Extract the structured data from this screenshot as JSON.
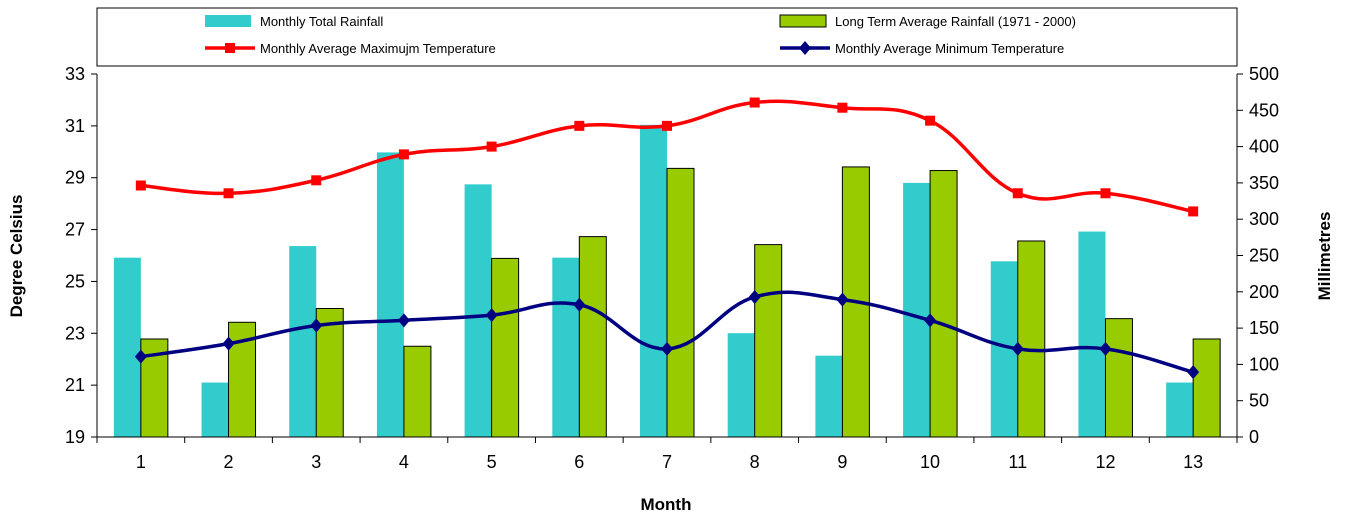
{
  "chart_data": {
    "type": "bar",
    "categories": [
      "1",
      "2",
      "3",
      "4",
      "5",
      "6",
      "7",
      "8",
      "9",
      "10",
      "11",
      "12",
      "13"
    ],
    "xlabel": "Month",
    "ylabel_left": "Degree Celsius",
    "ylabel_right": "Millimetres",
    "y_left_lim": [
      19,
      33
    ],
    "y_left_ticks": [
      "19",
      "21",
      "23",
      "25",
      "27",
      "29",
      "31",
      "33"
    ],
    "y_right_lim": [
      0,
      500
    ],
    "y_right_ticks": [
      "0",
      "50",
      "100",
      "150",
      "200",
      "250",
      "300",
      "350",
      "400",
      "450",
      "500"
    ],
    "grid": false,
    "legend_position": "top",
    "series": [
      {
        "name": "Monthly Total Rainfall",
        "kind": "bar",
        "axis": "right",
        "color": "#33CCCC",
        "values": [
          247,
          75,
          263,
          392,
          348,
          247,
          430,
          143,
          112,
          350,
          242,
          283,
          75
        ]
      },
      {
        "name": "Long Term Average Rainfall (1971 - 2000)",
        "kind": "bar",
        "axis": "right",
        "color": "#99CC00",
        "values": [
          135,
          158,
          177,
          125,
          246,
          276,
          370,
          265,
          372,
          367,
          270,
          163,
          135
        ]
      },
      {
        "name": "Monthly Average Maximujm Temperature",
        "kind": "line",
        "marker": "square",
        "axis": "left",
        "color": "#FF0000",
        "values": [
          28.7,
          28.4,
          28.9,
          29.9,
          30.2,
          31.0,
          31.0,
          31.9,
          31.7,
          31.2,
          28.4,
          28.4,
          27.7
        ]
      },
      {
        "name": "Monthly Average Minimum Temperature",
        "kind": "line",
        "marker": "diamond",
        "axis": "left",
        "color": "#000080",
        "values": [
          22.1,
          22.6,
          23.3,
          23.5,
          23.7,
          24.1,
          22.4,
          24.4,
          24.3,
          23.5,
          22.4,
          22.4,
          21.5
        ]
      }
    ]
  }
}
